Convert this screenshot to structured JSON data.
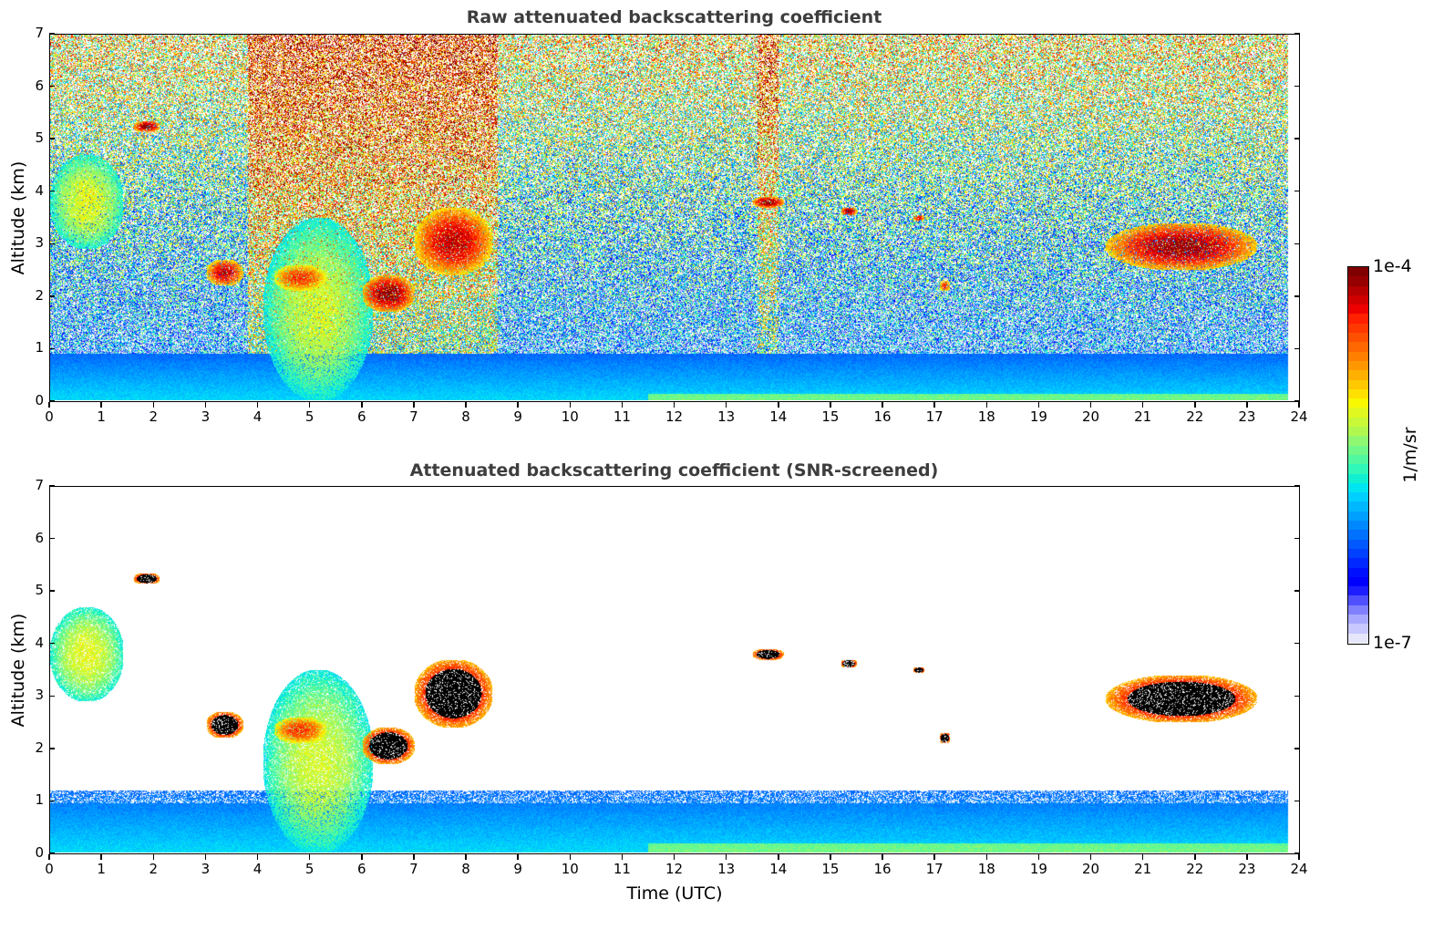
{
  "chart_data": [
    {
      "type": "heatmap",
      "title": "Raw attenuated backscattering coefficient",
      "xlabel": "",
      "ylabel": "Altitude (km)",
      "xlim": [
        0,
        24
      ],
      "ylim": [
        0,
        7
      ],
      "x_ticks": [
        "0",
        "1",
        "2",
        "3",
        "4",
        "5",
        "6",
        "7",
        "8",
        "9",
        "10",
        "11",
        "12",
        "13",
        "14",
        "15",
        "16",
        "17",
        "18",
        "19",
        "20",
        "21",
        "22",
        "23",
        "24"
      ],
      "y_ticks": [
        "0",
        "1",
        "2",
        "3",
        "4",
        "5",
        "6",
        "7"
      ],
      "data_time_range": [
        0,
        23.8
      ],
      "screened": false,
      "features": [
        {
          "name": "boundary-layer",
          "t": [
            0,
            23.8
          ],
          "z": [
            0,
            0.9
          ],
          "level": 0.3
        },
        {
          "name": "cirrus-0h",
          "t": [
            0,
            1.4
          ],
          "z": [
            2.9,
            4.7
          ],
          "level": 0.62
        },
        {
          "name": "cloud-1.8h",
          "t": [
            1.6,
            2.1
          ],
          "z": [
            5.15,
            5.35
          ],
          "level": 0.97
        },
        {
          "name": "precip-4h",
          "t": [
            4.1,
            6.2
          ],
          "z": [
            0,
            3.5
          ],
          "level": 0.6
        },
        {
          "name": "cloud-3h",
          "t": [
            3.0,
            3.7
          ],
          "z": [
            2.2,
            2.7
          ],
          "level": 0.92
        },
        {
          "name": "cloud-4.8h",
          "t": [
            4.3,
            5.3
          ],
          "z": [
            2.1,
            2.6
          ],
          "level": 0.85
        },
        {
          "name": "cloud-6.5h",
          "t": [
            6.0,
            7.0
          ],
          "z": [
            1.7,
            2.4
          ],
          "level": 0.97
        },
        {
          "name": "cloud-7.5h",
          "t": [
            7.0,
            8.5
          ],
          "z": [
            2.4,
            3.7
          ],
          "level": 0.93
        },
        {
          "name": "cloud-13.8h",
          "t": [
            13.5,
            14.1
          ],
          "z": [
            3.7,
            3.9
          ],
          "level": 0.97
        },
        {
          "name": "cloud-15.4h",
          "t": [
            15.2,
            15.5
          ],
          "z": [
            3.55,
            3.7
          ],
          "level": 0.95
        },
        {
          "name": "cloud-16.7h",
          "t": [
            16.6,
            16.8
          ],
          "z": [
            3.45,
            3.55
          ],
          "level": 0.9
        },
        {
          "name": "cloud-17.2h",
          "t": [
            17.1,
            17.3
          ],
          "z": [
            2.1,
            2.3
          ],
          "level": 0.85
        },
        {
          "name": "cloud-21h",
          "t": [
            20.3,
            23.2
          ],
          "z": [
            2.5,
            3.4
          ],
          "level": 0.96
        }
      ]
    },
    {
      "type": "heatmap",
      "title": "Attenuated backscattering coefficient (SNR-screened)",
      "xlabel": "Time (UTC)",
      "ylabel": "Altitude (km)",
      "xlim": [
        0,
        24
      ],
      "ylim": [
        0,
        7
      ],
      "x_ticks": [
        "0",
        "1",
        "2",
        "3",
        "4",
        "5",
        "6",
        "7",
        "8",
        "9",
        "10",
        "11",
        "12",
        "13",
        "14",
        "15",
        "16",
        "17",
        "18",
        "19",
        "20",
        "21",
        "22",
        "23",
        "24"
      ],
      "y_ticks": [
        "0",
        "1",
        "2",
        "3",
        "4",
        "5",
        "6",
        "7"
      ],
      "data_time_range": [
        0,
        23.8
      ],
      "screened": true,
      "features": [
        {
          "name": "boundary-layer",
          "t": [
            0,
            23.8
          ],
          "z": [
            0,
            1.2
          ],
          "level": 0.3
        },
        {
          "name": "cirrus-0h",
          "t": [
            0,
            1.4
          ],
          "z": [
            2.9,
            4.7
          ],
          "level": 0.62
        },
        {
          "name": "cloud-1.8h",
          "t": [
            1.6,
            2.1
          ],
          "z": [
            5.15,
            5.35
          ],
          "level": 1.0
        },
        {
          "name": "precip-4h",
          "t": [
            4.1,
            6.2
          ],
          "z": [
            0,
            3.5
          ],
          "level": 0.6
        },
        {
          "name": "cloud-3h",
          "t": [
            3.0,
            3.7
          ],
          "z": [
            2.2,
            2.7
          ],
          "level": 1.0
        },
        {
          "name": "cloud-4.8h",
          "t": [
            4.3,
            5.3
          ],
          "z": [
            2.1,
            2.6
          ],
          "level": 0.85
        },
        {
          "name": "cloud-6.5h",
          "t": [
            6.0,
            7.0
          ],
          "z": [
            1.7,
            2.4
          ],
          "level": 1.0
        },
        {
          "name": "cloud-7.5h",
          "t": [
            7.0,
            8.5
          ],
          "z": [
            2.4,
            3.7
          ],
          "level": 1.0
        },
        {
          "name": "cloud-13.8h",
          "t": [
            13.5,
            14.1
          ],
          "z": [
            3.7,
            3.9
          ],
          "level": 1.0
        },
        {
          "name": "cloud-15.4h",
          "t": [
            15.2,
            15.5
          ],
          "z": [
            3.55,
            3.7
          ],
          "level": 1.0
        },
        {
          "name": "cloud-16.7h",
          "t": [
            16.6,
            16.8
          ],
          "z": [
            3.45,
            3.55
          ],
          "level": 1.0
        },
        {
          "name": "cloud-17.2h",
          "t": [
            17.1,
            17.3
          ],
          "z": [
            2.1,
            2.3
          ],
          "level": 1.0
        },
        {
          "name": "cloud-21h",
          "t": [
            20.3,
            23.2
          ],
          "z": [
            2.5,
            3.4
          ],
          "level": 1.0
        }
      ]
    }
  ],
  "colorbar": {
    "min_label": "1e-7",
    "max_label": "1e-4",
    "unit": "1/m/sr",
    "colors": [
      "#e6e6fa",
      "#c8c8ff",
      "#a8a8ff",
      "#8080ff",
      "#5050ff",
      "#1e1eff",
      "#0000ff",
      "#0010ff",
      "#0028ff",
      "#0040ff",
      "#0058ff",
      "#0070ff",
      "#0088ff",
      "#00a0ff",
      "#00b8ff",
      "#00d0ff",
      "#00e6f0",
      "#10f0d0",
      "#30f8b8",
      "#50f8a0",
      "#70f888",
      "#90f870",
      "#b0f850",
      "#c8f838",
      "#e0f820",
      "#f8f800",
      "#ffe000",
      "#ffc800",
      "#ffb000",
      "#ff9800",
      "#ff8000",
      "#ff6800",
      "#ff5000",
      "#ff3800",
      "#ff2000",
      "#ee0000",
      "#d00000",
      "#b40000",
      "#960000",
      "#800000"
    ]
  }
}
